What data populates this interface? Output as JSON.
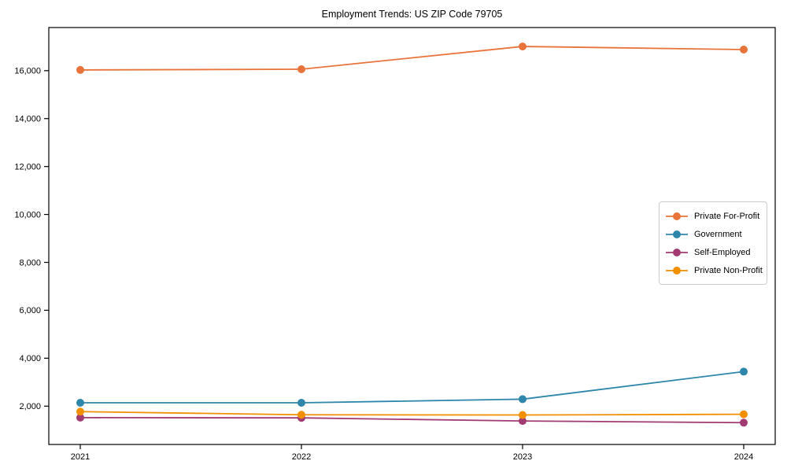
{
  "chart_data": {
    "type": "line",
    "title": "Employment Trends: US ZIP Code 79705",
    "categories": [
      "2021",
      "2022",
      "2023",
      "2024"
    ],
    "series": [
      {
        "name": "Private For-Profit",
        "color": "#E8743B",
        "values": [
          16030,
          16060,
          17010,
          16880
        ]
      },
      {
        "name": "Government",
        "color": "#2E86AB",
        "values": [
          2140,
          2140,
          2290,
          3440
        ]
      },
      {
        "name": "Self-Employed",
        "color": "#A23B72",
        "values": [
          1520,
          1510,
          1380,
          1310
        ]
      },
      {
        "name": "Private Non-Profit",
        "color": "#F18F01",
        "values": [
          1770,
          1640,
          1630,
          1660
        ]
      }
    ],
    "xlabel": "",
    "ylabel": "",
    "ylim": [
      400,
      17800
    ],
    "yticks": [
      2000,
      4000,
      6000,
      8000,
      10000,
      12000,
      14000,
      16000
    ],
    "grid": false,
    "legend_position": "right-middle",
    "axis_color": "#000000"
  }
}
